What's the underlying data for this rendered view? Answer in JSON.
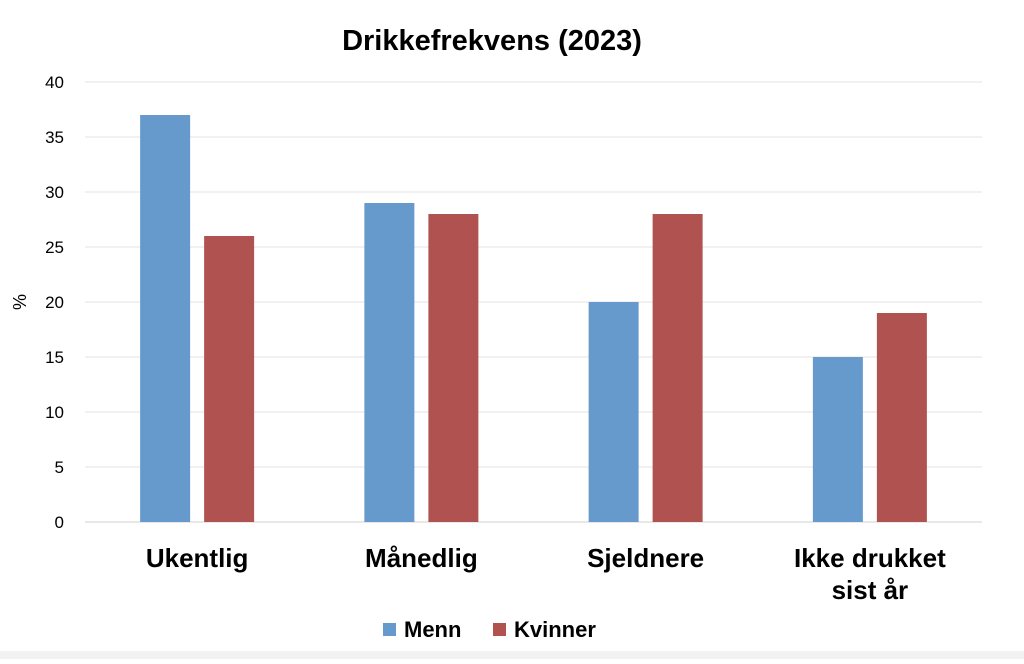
{
  "chart_data": {
    "type": "bar",
    "title": "Drikkefrekvens (2023)",
    "ylabel": "%",
    "xlabel": "",
    "ylim": [
      0,
      40
    ],
    "yticks": [
      0,
      5,
      10,
      15,
      20,
      25,
      30,
      35,
      40
    ],
    "grid": true,
    "legend_position": "bottom",
    "categories": [
      [
        "Ukentlig"
      ],
      [
        "Månedlig"
      ],
      [
        "Sjeldnere"
      ],
      [
        "Ikke drukket",
        "sist år"
      ]
    ],
    "series": [
      {
        "name": "Menn",
        "color": "#6699cc",
        "values": [
          37,
          29,
          20,
          15
        ]
      },
      {
        "name": "Kvinner",
        "color": "#b0524f",
        "values": [
          26,
          28,
          28,
          19
        ]
      }
    ]
  }
}
